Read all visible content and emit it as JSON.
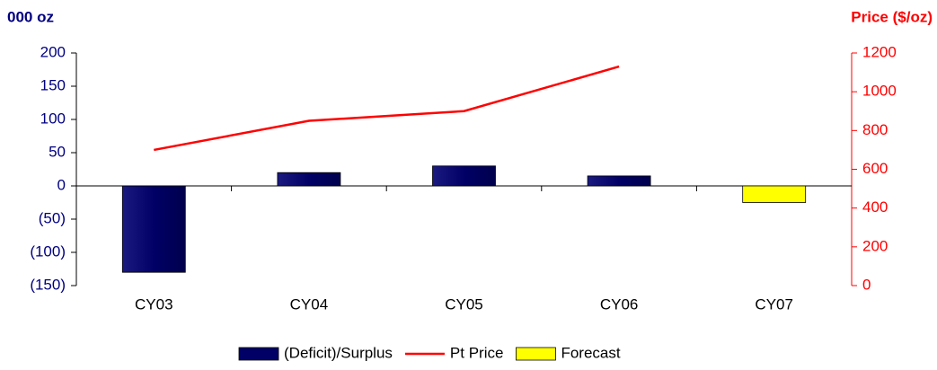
{
  "chart_data": {
    "type": "bar",
    "y_label": "000 oz",
    "y2_label": "Price ($/oz)",
    "categories": [
      "CY03",
      "CY04",
      "CY05",
      "CY06",
      "CY07"
    ],
    "series": [
      {
        "name": "(Deficit)/Surplus",
        "type": "bar",
        "color": "#000066",
        "values": [
          -130,
          20,
          30,
          15,
          null
        ]
      },
      {
        "name": "Pt Price",
        "type": "line",
        "axis": "y2",
        "color": "#ff0000",
        "values": [
          700,
          850,
          900,
          1130,
          null
        ]
      },
      {
        "name": "Forecast",
        "type": "bar",
        "color": "#ffff00",
        "values": [
          null,
          null,
          null,
          null,
          -25
        ]
      }
    ],
    "ylim": [
      -150,
      200
    ],
    "yticks": [
      {
        "value": -150,
        "label": "(150)"
      },
      {
        "value": -100,
        "label": "(100)"
      },
      {
        "value": -50,
        "label": "(50)"
      },
      0,
      50,
      100,
      150,
      200
    ],
    "y2lim": [
      0,
      1200
    ],
    "y2ticks": [
      0,
      200,
      400,
      600,
      800,
      1000,
      1200
    ],
    "y_color": "#000080",
    "y2_color": "#ff0000",
    "legend": "bottom"
  }
}
